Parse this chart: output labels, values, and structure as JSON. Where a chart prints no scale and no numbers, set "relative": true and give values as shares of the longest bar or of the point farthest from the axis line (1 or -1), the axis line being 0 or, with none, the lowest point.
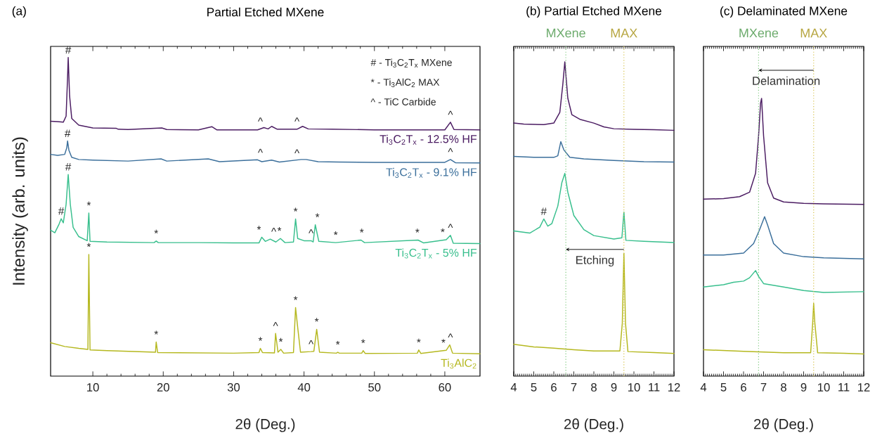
{
  "chart_data": [
    {
      "type": "line",
      "relative": true,
      "title": "(a)",
      "subtitle": "Partial Etched MXene",
      "xlabel": "2θ (Deg.)",
      "ylabel": "Intensity (arb. units)",
      "xlim": [
        4,
        65
      ],
      "xticks": [
        10,
        20,
        30,
        40,
        50,
        60
      ],
      "series": [
        {
          "name": "Ti$_{3}$C$_{2}$T$_{x}$ - 12.5% HF",
          "color": "#4b1c62",
          "x": [
            4,
            5,
            5.8,
            6.2,
            6.4,
            6.5,
            6.7,
            7,
            8,
            10,
            13.3,
            13.6,
            15,
            19.8,
            20.5,
            25,
            26.9,
            27.6,
            33.4,
            34.3,
            34.9,
            35.4,
            36.2,
            39.0,
            39.8,
            40.6,
            44,
            50,
            60,
            60.8,
            61.3,
            65
          ],
          "values": [
            0.8,
            0.799,
            0.797,
            0.816,
            0.932,
            1.0,
            0.879,
            0.809,
            0.788,
            0.779,
            0.778,
            0.775,
            0.774,
            0.779,
            0.774,
            0.773,
            0.783,
            0.773,
            0.773,
            0.78,
            0.776,
            0.784,
            0.775,
            0.775,
            0.784,
            0.776,
            0.775,
            0.773,
            0.773,
            0.797,
            0.774,
            0.773
          ]
        },
        {
          "name": "Ti$_{3}$C$_{2}$T$_{x}$ - 9.1% HF",
          "color": "#3b6f9b",
          "x": [
            4,
            5,
            6,
            6.29,
            6.41,
            6.6,
            7,
            8,
            10,
            15,
            19.7,
            20.5,
            26.4,
            28,
            33.4,
            34,
            35.4,
            36.5,
            39.6,
            40.3,
            42,
            45,
            50,
            60,
            60.8,
            61.5,
            65
          ],
          "values": [
            0.696,
            0.693,
            0.696,
            0.716,
            0.738,
            0.709,
            0.687,
            0.68,
            0.678,
            0.675,
            0.682,
            0.675,
            0.682,
            0.673,
            0.679,
            0.673,
            0.678,
            0.672,
            0.68,
            0.68,
            0.673,
            0.672,
            0.671,
            0.671,
            0.68,
            0.67,
            0.669
          ]
        },
        {
          "name": "Ti$_{3}$C$_{2}$T$_{x}$ - 5% HF",
          "color": "#38bf8d",
          "x": [
            4,
            4.6,
            5.2,
            5.5,
            5.8,
            6.2,
            6.5,
            6.8,
            7.2,
            8,
            9.2,
            9.43,
            9.6,
            12,
            18.7,
            19.0,
            19.3,
            25,
            30,
            33.6,
            34.0,
            34.5,
            35.2,
            36.0,
            36.65,
            37.3,
            38.5,
            38.8,
            39.1,
            40,
            41.0,
            41.3,
            41.6,
            42.1,
            44.5,
            48.1,
            48.6,
            56.2,
            57,
            60.2,
            60.8,
            61.2,
            65
          ],
          "values": [
            0.458,
            0.45,
            0.477,
            0.494,
            0.481,
            0.539,
            0.633,
            0.539,
            0.467,
            0.438,
            0.425,
            0.512,
            0.423,
            0.421,
            0.419,
            0.424,
            0.419,
            0.419,
            0.418,
            0.418,
            0.436,
            0.423,
            0.43,
            0.421,
            0.432,
            0.419,
            0.421,
            0.493,
            0.432,
            0.425,
            0.425,
            0.421,
            0.475,
            0.423,
            0.419,
            0.427,
            0.419,
            0.427,
            0.418,
            0.428,
            0.442,
            0.417,
            0.416
          ]
        },
        {
          "name": "Ti$_{3}$AlC$_{2}$",
          "color": "#b5b81f",
          "x": [
            4,
            6,
            8,
            9.3,
            9.43,
            9.6,
            12,
            18.9,
            19.0,
            19.2,
            30,
            33.6,
            33.8,
            34.1,
            35.8,
            35.96,
            36.3,
            36.7,
            37.1,
            38.5,
            38.8,
            39.1,
            39.5,
            41.0,
            41.4,
            41.8,
            42.2,
            44.6,
            44.8,
            45.0,
            48.2,
            48.4,
            48.7,
            56.1,
            56.3,
            56.6,
            60.2,
            60.7,
            61.1,
            65
          ],
          "values": [
            0.105,
            0.093,
            0.087,
            0.084,
            0.382,
            0.082,
            0.08,
            0.075,
            0.107,
            0.074,
            0.072,
            0.074,
            0.087,
            0.074,
            0.073,
            0.134,
            0.075,
            0.084,
            0.072,
            0.074,
            0.215,
            0.153,
            0.075,
            0.077,
            0.078,
            0.147,
            0.075,
            0.072,
            0.075,
            0.072,
            0.072,
            0.08,
            0.071,
            0.072,
            0.082,
            0.071,
            0.081,
            0.098,
            0.072,
            0.07
          ]
        }
      ],
      "annotations": [
        "# - Ti$_{3}$C$_{2}$T$_{x}$ MXene",
        "* - Ti$_{3}$AlC$_{2}$ MAX",
        "^ - TiC Carbide",
        {
          "text": "#",
          "x": 6.5,
          "y": 1.0
        },
        {
          "text": "^",
          "x": 33.8,
          "y": 0.776
        },
        {
          "text": "^",
          "x": 39.0,
          "y": 0.776
        },
        {
          "text": "^",
          "x": 60.8,
          "y": 0.797
        },
        {
          "text": "#",
          "x": 6.41,
          "y": 0.738
        },
        {
          "text": "^",
          "x": 33.8,
          "y": 0.678
        },
        {
          "text": "^",
          "x": 39.0,
          "y": 0.676
        },
        {
          "text": "^",
          "x": 60.8,
          "y": 0.68
        },
        {
          "text": "#",
          "x": 5.5,
          "y": 0.494
        },
        {
          "text": "#",
          "x": 6.5,
          "y": 0.633
        },
        {
          "text": "*",
          "x": 9.43,
          "y": 0.512
        },
        {
          "text": "*",
          "x": 19.0,
          "y": 0.424
        },
        {
          "text": "*",
          "x": 33.6,
          "y": 0.436
        },
        {
          "text": "^",
          "x": 35.7,
          "y": 0.43
        },
        {
          "text": "*",
          "x": 36.5,
          "y": 0.432
        },
        {
          "text": "*",
          "x": 38.8,
          "y": 0.493
        },
        {
          "text": "^",
          "x": 41.0,
          "y": 0.425
        },
        {
          "text": "*",
          "x": 41.9,
          "y": 0.475
        },
        {
          "text": "*",
          "x": 44.5,
          "y": 0.419
        },
        {
          "text": "*",
          "x": 48.2,
          "y": 0.427
        },
        {
          "text": "*",
          "x": 56.1,
          "y": 0.427
        },
        {
          "text": "*",
          "x": 59.7,
          "y": 0.428
        },
        {
          "text": "^",
          "x": 60.8,
          "y": 0.442
        },
        {
          "text": "*",
          "x": 9.43,
          "y": 0.382
        },
        {
          "text": "*",
          "x": 19.0,
          "y": 0.107
        },
        {
          "text": "*",
          "x": 33.8,
          "y": 0.087
        },
        {
          "text": "^",
          "x": 35.96,
          "y": 0.134
        },
        {
          "text": "*",
          "x": 36.7,
          "y": 0.084
        },
        {
          "text": "*",
          "x": 38.8,
          "y": 0.215
        },
        {
          "text": "^",
          "x": 41.0,
          "y": 0.077
        },
        {
          "text": "*",
          "x": 41.8,
          "y": 0.147
        },
        {
          "text": "*",
          "x": 44.8,
          "y": 0.075
        },
        {
          "text": "*",
          "x": 48.4,
          "y": 0.08
        },
        {
          "text": "*",
          "x": 56.3,
          "y": 0.082
        },
        {
          "text": "*",
          "x": 59.8,
          "y": 0.081
        },
        {
          "text": "^",
          "x": 60.8,
          "y": 0.098
        }
      ]
    },
    {
      "type": "line",
      "relative": true,
      "title": "(b) Partial Etched MXene",
      "xlabel": "2θ (Deg.)",
      "xlim": [
        4,
        12
      ],
      "xticks": [
        4,
        5,
        6,
        7,
        8,
        9,
        10,
        11,
        12
      ],
      "series": [
        {
          "color": "#4b1c62",
          "x": [
            4,
            4.5,
            5.5,
            6.0,
            6.3,
            6.45,
            6.55,
            6.7,
            6.9,
            7.3,
            8,
            8.5,
            9,
            10,
            11,
            12
          ],
          "values": [
            0.805,
            0.802,
            0.8,
            0.805,
            0.839,
            0.928,
            1.0,
            0.884,
            0.832,
            0.817,
            0.805,
            0.793,
            0.787,
            0.785,
            0.784,
            0.782
          ]
        },
        {
          "color": "#3b6f9b",
          "x": [
            4,
            5,
            6,
            6.2,
            6.35,
            6.5,
            6.8,
            7.5,
            9,
            10.5,
            12
          ],
          "values": [
            0.699,
            0.696,
            0.696,
            0.701,
            0.746,
            0.72,
            0.696,
            0.691,
            0.686,
            0.682,
            0.681
          ]
        },
        {
          "color": "#38bf8d",
          "x": [
            4,
            4.8,
            5.3,
            5.5,
            5.7,
            5.9,
            6.2,
            6.4,
            6.55,
            6.7,
            7.0,
            7.5,
            8,
            9,
            9.4,
            9.5,
            9.6,
            10.5,
            12
          ],
          "values": [
            0.462,
            0.455,
            0.474,
            0.5,
            0.477,
            0.485,
            0.541,
            0.615,
            0.645,
            0.585,
            0.511,
            0.466,
            0.447,
            0.436,
            0.44,
            0.522,
            0.432,
            0.429,
            0.425
          ]
        },
        {
          "color": "#b5b81f",
          "x": [
            4,
            5,
            6,
            7,
            8,
            9.3,
            9.42,
            9.5,
            9.58,
            9.7,
            11,
            12
          ],
          "values": [
            0.101,
            0.093,
            0.089,
            0.084,
            0.08,
            0.08,
            0.168,
            0.391,
            0.168,
            0.078,
            0.075,
            0.072
          ]
        }
      ],
      "ref_lines": [
        {
          "axis": "x",
          "value": 6.6,
          "label": "MXene",
          "color": "#7ec87e",
          "line_style": "dotted"
        },
        {
          "axis": "x",
          "value": 9.5,
          "label": "MAX",
          "color": "#d6c24a",
          "line_style": "dotted"
        }
      ],
      "annotations": [
        {
          "text": "#",
          "x": 5.5,
          "y": 0.5
        },
        "Etching"
      ]
    },
    {
      "type": "line",
      "relative": true,
      "title": "(c) Delaminated MXene",
      "xlabel": "2θ (Deg.)",
      "xlim": [
        4,
        12
      ],
      "xticks": [
        4,
        5,
        6,
        7,
        8,
        9,
        10,
        11,
        12
      ],
      "series": [
        {
          "color": "#4b1c62",
          "x": [
            4,
            5,
            5.8,
            6.3,
            6.6,
            6.75,
            6.85,
            6.9,
            7.0,
            7.2,
            7.5,
            8,
            9,
            10,
            12
          ],
          "values": [
            0.637,
            0.639,
            0.646,
            0.662,
            0.73,
            0.865,
            0.983,
            1.0,
            0.865,
            0.696,
            0.641,
            0.627,
            0.622,
            0.62,
            0.618
          ]
        },
        {
          "color": "#3b6f9b",
          "x": [
            4,
            5,
            6,
            6.5,
            6.8,
            7.05,
            7.2,
            7.5,
            8,
            9,
            10,
            12
          ],
          "values": [
            0.436,
            0.436,
            0.443,
            0.477,
            0.527,
            0.574,
            0.544,
            0.477,
            0.443,
            0.43,
            0.426,
            0.422
          ]
        },
        {
          "color": "#38bf8d",
          "x": [
            4,
            5,
            5.5,
            6.0,
            6.3,
            6.6,
            6.75,
            7.0,
            8,
            9,
            10,
            12
          ],
          "values": [
            0.321,
            0.329,
            0.338,
            0.342,
            0.354,
            0.38,
            0.359,
            0.333,
            0.321,
            0.308,
            0.301,
            0.304
          ]
        },
        {
          "color": "#b5b81f",
          "x": [
            4,
            6,
            8,
            9.35,
            9.45,
            9.5,
            9.56,
            9.7,
            11,
            12
          ],
          "values": [
            0.095,
            0.089,
            0.084,
            0.084,
            0.19,
            0.262,
            0.19,
            0.084,
            0.082,
            0.08
          ]
        }
      ],
      "ref_lines": [
        {
          "axis": "x",
          "value": 6.75,
          "label": "MXene",
          "color": "#7ec87e",
          "line_style": "dotted"
        },
        {
          "axis": "x",
          "value": 9.5,
          "label": "MAX",
          "color": "#d6c24a",
          "line_style": "dotted"
        }
      ],
      "annotations": [
        "Delamination"
      ]
    }
  ]
}
